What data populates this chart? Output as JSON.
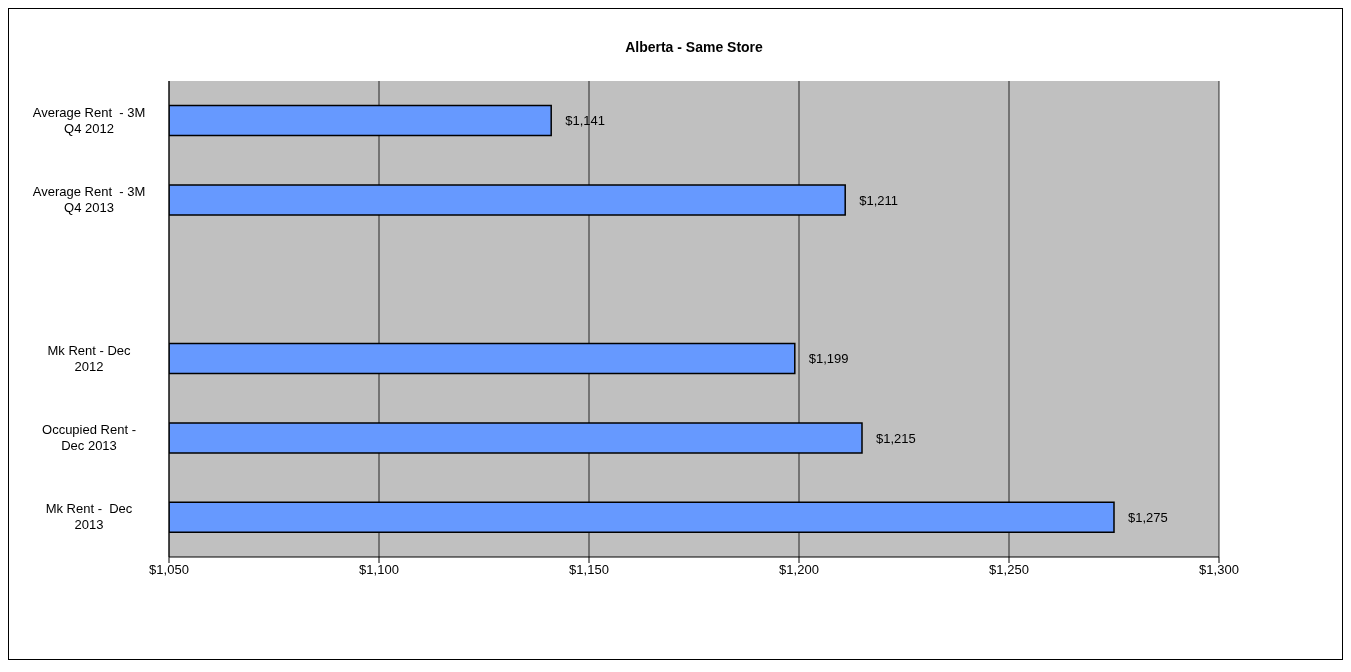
{
  "chart_data": {
    "type": "bar",
    "orientation": "horizontal",
    "title": "Alberta - Same Store",
    "categories": [
      "Average Rent  - 3M\nQ4 2012",
      "Average Rent  - 3M\nQ4 2013",
      null,
      "Mk Rent - Dec\n2012",
      "Occupied Rent -\nDec 2013",
      "Mk Rent -  Dec\n2013"
    ],
    "values": [
      1141,
      1211,
      null,
      1199,
      1215,
      1275
    ],
    "color": "#6699ff",
    "value_labels": [
      "$1,141",
      "$1,211",
      null,
      "$1,199",
      "$1,215",
      "$1,275"
    ],
    "xlim": [
      1050,
      1300
    ],
    "xticks": [
      {
        "value": 1050,
        "label": "$1,050"
      },
      {
        "value": 1100,
        "label": "$1,100"
      },
      {
        "value": 1150,
        "label": "$1,150"
      },
      {
        "value": 1200,
        "label": "$1,200"
      },
      {
        "value": 1250,
        "label": "$1,250"
      },
      {
        "value": 1300,
        "label": "$1,300"
      }
    ],
    "grid": "x",
    "legend": false
  }
}
